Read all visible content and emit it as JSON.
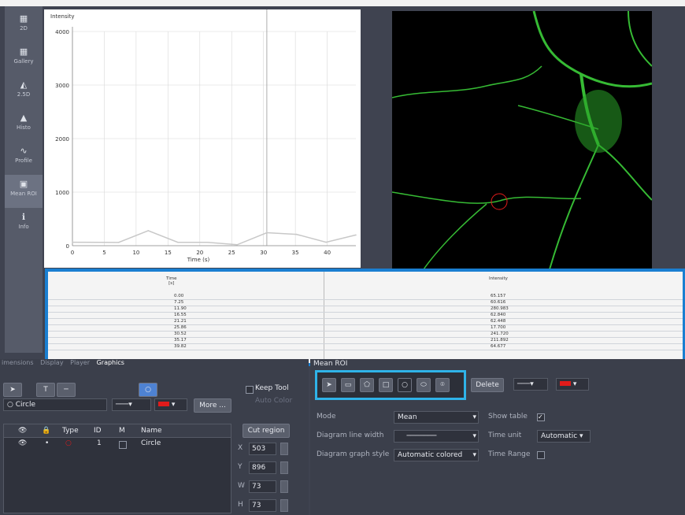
{
  "sidebar": {
    "items": [
      {
        "label": "2D",
        "icon": "2d-icon",
        "glyph": "▦"
      },
      {
        "label": "Gallery",
        "icon": "gallery-icon",
        "glyph": "▦"
      },
      {
        "label": "2.5D",
        "icon": "2-5d-icon",
        "glyph": "◭"
      },
      {
        "label": "Histo",
        "icon": "histogram-icon",
        "glyph": "▲"
      },
      {
        "label": "Profile",
        "icon": "profile-icon",
        "glyph": "∿"
      },
      {
        "label": "Mean ROI",
        "icon": "mean-roi-icon",
        "glyph": "▣"
      },
      {
        "label": "Info",
        "icon": "info-icon",
        "glyph": "ℹ"
      }
    ]
  },
  "chart_data": {
    "type": "line",
    "title": "",
    "ylabel": "Intensity",
    "xlabel": "Time (s)",
    "x": [
      0,
      7.25,
      11.9,
      16.55,
      21.21,
      25.86,
      30.52,
      35.17,
      39.82,
      44.5
    ],
    "series": [
      {
        "values": [
          65.157,
          60.616,
          280.983,
          62.84,
          62.448,
          17.7,
          241.72,
          211.892,
          64.677,
          200
        ]
      }
    ],
    "xlim": [
      0,
      44.5
    ],
    "ylim": [
      0,
      4000
    ],
    "xticks": [
      0,
      5,
      10,
      15,
      20,
      25,
      30,
      35,
      40
    ],
    "yticks": [
      0,
      1000,
      2000,
      3000,
      4000
    ],
    "cursor_x": 30.52,
    "line_color": "#c8c8c8",
    "grid": true
  },
  "table": {
    "col1_header": "Time",
    "col1_unit": "[s]",
    "col2_header": "Intensity",
    "rows": [
      [
        "0.00",
        "65.157"
      ],
      [
        "7.25",
        "60.616"
      ],
      [
        "11.90",
        "280.983"
      ],
      [
        "16.55",
        "62.840"
      ],
      [
        "21.21",
        "62.448"
      ],
      [
        "25.86",
        "17.700"
      ],
      [
        "30.52",
        "241.720"
      ],
      [
        "35.17",
        "211.892"
      ],
      [
        "39.82",
        "64.677"
      ]
    ]
  },
  "left_panel": {
    "tabs": [
      "imensions",
      "Display",
      "Player",
      "Graphics"
    ],
    "active_tab": "Graphics",
    "shape_dropdown": "Circle",
    "keep_tool": "Keep Tool",
    "auto_color": "Auto Color",
    "more": "More ...",
    "columns": [
      "Type",
      "ID",
      "M",
      "Name"
    ],
    "row": {
      "id": "1",
      "name": "Circle"
    },
    "cut_region": "Cut region",
    "x_label": "X",
    "x_value": "503",
    "y_label": "Y",
    "y_value": "896",
    "w_label": "W",
    "w_value": "73",
    "h_label": "H",
    "h_value": "73"
  },
  "right_panel": {
    "title": "Mean ROI",
    "delete": "Delete",
    "mode_label": "Mode",
    "mode_value": "Mean",
    "line_width_label": "Diagram line width",
    "graph_style_label": "Diagram graph style",
    "graph_style_value": "Automatic colored",
    "show_table": "Show table",
    "time_unit_label": "Time unit",
    "time_unit_value": "Automatic",
    "time_range": "Time Range"
  },
  "colors": {
    "roi": "#e11b1b",
    "highlight": "#1a7fd1",
    "tool_highlight": "#2fb3e8",
    "neuron": "#4fe24a"
  }
}
